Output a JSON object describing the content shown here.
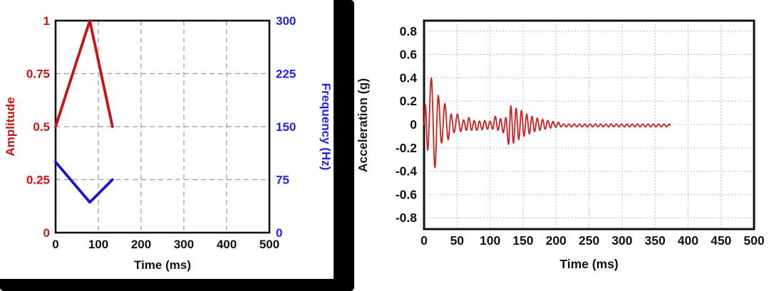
{
  "figure": {
    "background": "#ffffff",
    "divider_color": "#000000",
    "grid_color_left": "#999999",
    "grid_color_right": "#b3b3b3",
    "frame_color": "#111111"
  },
  "chart_data": [
    {
      "id": "sweep-profile",
      "type": "line",
      "title": "",
      "xlabel": "Time (ms)",
      "ylabel": "Amplitude",
      "y2label": "Frequency (Hz)",
      "xlim": [
        0,
        500
      ],
      "ylim": [
        0,
        1
      ],
      "y2lim": [
        0,
        300
      ],
      "x_ticks": [
        "0",
        "100",
        "200",
        "300",
        "400",
        "500"
      ],
      "y_ticks": [
        "0",
        "0.25",
        "0.5",
        "0.75",
        "1"
      ],
      "y2_ticks": [
        "0",
        "75",
        "150",
        "225",
        "300"
      ],
      "grid": "dashed",
      "legend": "none",
      "ylabel_color": "#cc1111",
      "y2label_color": "#2222ee",
      "series": [
        {
          "name": "Amplitude",
          "yaxis": "y",
          "color": "#c41414",
          "points": [
            [
              0,
              0.5
            ],
            [
              80,
              1.0
            ],
            [
              133,
              0.5
            ]
          ]
        },
        {
          "name": "Frequency (Hz)",
          "yaxis": "y2",
          "color": "#1515cc",
          "points": [
            [
              0,
              100
            ],
            [
              80,
              43
            ],
            [
              133,
              75
            ]
          ]
        }
      ]
    },
    {
      "id": "acceleration-response",
      "type": "line",
      "title": "",
      "xlabel": "Time (ms)",
      "ylabel": "Acceleration (g)",
      "xlim": [
        0,
        500
      ],
      "ylim": [
        -0.9,
        0.9
      ],
      "x_ticks": [
        "0",
        "50",
        "100",
        "150",
        "200",
        "250",
        "300",
        "350",
        "400",
        "450",
        "500"
      ],
      "y_ticks": [
        "0.8",
        "0.6",
        "0.4",
        "0.2",
        "0",
        "-0.2",
        "-0.4",
        "-0.6",
        "-0.8"
      ],
      "grid": "dotted",
      "legend": "none",
      "ylabel_color": "#1a1a1a",
      "series": [
        {
          "name": "Acceleration",
          "color": "#cc1f1f",
          "extrema": [
            [
              0,
              0
            ],
            [
              2,
              0.17
            ],
            [
              5.5,
              -0.22
            ],
            [
              11,
              0.4
            ],
            [
              16.5,
              -0.37
            ],
            [
              21.5,
              0.25
            ],
            [
              26.5,
              -0.16
            ],
            [
              31.5,
              0.18
            ],
            [
              36.5,
              -0.13
            ],
            [
              41,
              0.09
            ],
            [
              45.5,
              -0.07
            ],
            [
              50.5,
              0.09
            ],
            [
              55.5,
              -0.06
            ],
            [
              60,
              0.04
            ],
            [
              64,
              -0.05
            ],
            [
              68,
              0.06
            ],
            [
              72,
              -0.05
            ],
            [
              76,
              0.035
            ],
            [
              80,
              -0.05
            ],
            [
              84,
              0.03
            ],
            [
              88,
              -0.045
            ],
            [
              92,
              0.035
            ],
            [
              96,
              -0.04
            ],
            [
              100,
              0.028
            ],
            [
              104,
              -0.04
            ],
            [
              108,
              0.07
            ],
            [
              112,
              -0.05
            ],
            [
              116,
              0.05
            ],
            [
              120,
              -0.07
            ],
            [
              124,
              0.06
            ],
            [
              128,
              -0.17
            ],
            [
              131.5,
              0.16
            ],
            [
              135.5,
              -0.16
            ],
            [
              139.5,
              0.14
            ],
            [
              143.5,
              -0.13
            ],
            [
              147.5,
              0.12
            ],
            [
              151.5,
              -0.1
            ],
            [
              155.5,
              0.09
            ],
            [
              159.5,
              -0.08
            ],
            [
              163.5,
              0.07
            ],
            [
              167.5,
              -0.06
            ],
            [
              171.5,
              0.055
            ],
            [
              175.5,
              -0.05
            ],
            [
              179.5,
              0.045
            ],
            [
              183.5,
              -0.04
            ],
            [
              187.5,
              0.035
            ],
            [
              191.5,
              -0.03
            ],
            [
              195.5,
              0.027
            ],
            [
              199.5,
              -0.024
            ],
            [
              203.5,
              0.02
            ]
          ],
          "tail": {
            "t_start": 203.5,
            "t_end": 373,
            "amplitude": 0.012,
            "half_period_ms": 4,
            "offset": -0.008
          }
        }
      ]
    }
  ]
}
